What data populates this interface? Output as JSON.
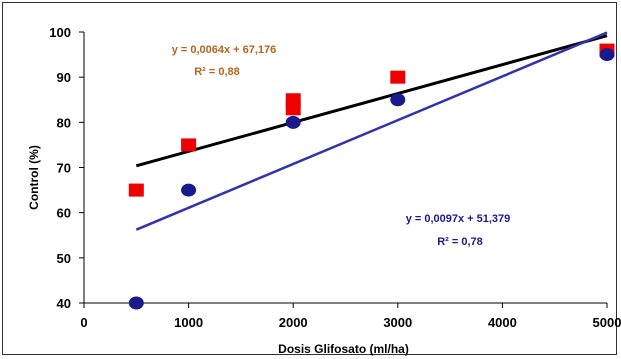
{
  "chart_data": {
    "type": "scatter",
    "xlabel": "Dosis Glifosato (ml/ha)",
    "ylabel": "Control (%)",
    "xlim": [
      0,
      5000
    ],
    "ylim": [
      40,
      100
    ],
    "xticks": [
      "0",
      "1000",
      "2000",
      "3000",
      "4000",
      "5000"
    ],
    "yticks": [
      "40",
      "50",
      "60",
      "70",
      "80",
      "90",
      "100"
    ],
    "grid": false,
    "series": [
      {
        "marker": "square",
        "color": "#ee0000",
        "points": [
          {
            "x": 500,
            "y": 65
          },
          {
            "x": 1000,
            "y": 75
          },
          {
            "x": 2000,
            "y": 83
          },
          {
            "x": 2000,
            "y": 85
          },
          {
            "x": 3000,
            "y": 90
          },
          {
            "x": 5000,
            "y": 96
          }
        ],
        "trendline": {
          "slope": 0.0064,
          "intercept": 67.176,
          "x_range": [
            500,
            5000
          ],
          "color": "#000000"
        },
        "equation": "y = 0,0064x + 67,176",
        "r2": "R² = 0,88",
        "label_color": "#b5651d"
      },
      {
        "marker": "circle",
        "color": "#1a1a8c",
        "points": [
          {
            "x": 500,
            "y": 40
          },
          {
            "x": 1000,
            "y": 65
          },
          {
            "x": 2000,
            "y": 80
          },
          {
            "x": 3000,
            "y": 85
          },
          {
            "x": 5000,
            "y": 95
          }
        ],
        "trendline": {
          "slope": 0.0097,
          "intercept": 51.379,
          "x_range": [
            500,
            5000
          ],
          "color": "#3333aa"
        },
        "equation": "y = 0,0097x + 51,379",
        "r2": "R² = 0,78",
        "label_color": "#1a1a8c"
      }
    ]
  }
}
